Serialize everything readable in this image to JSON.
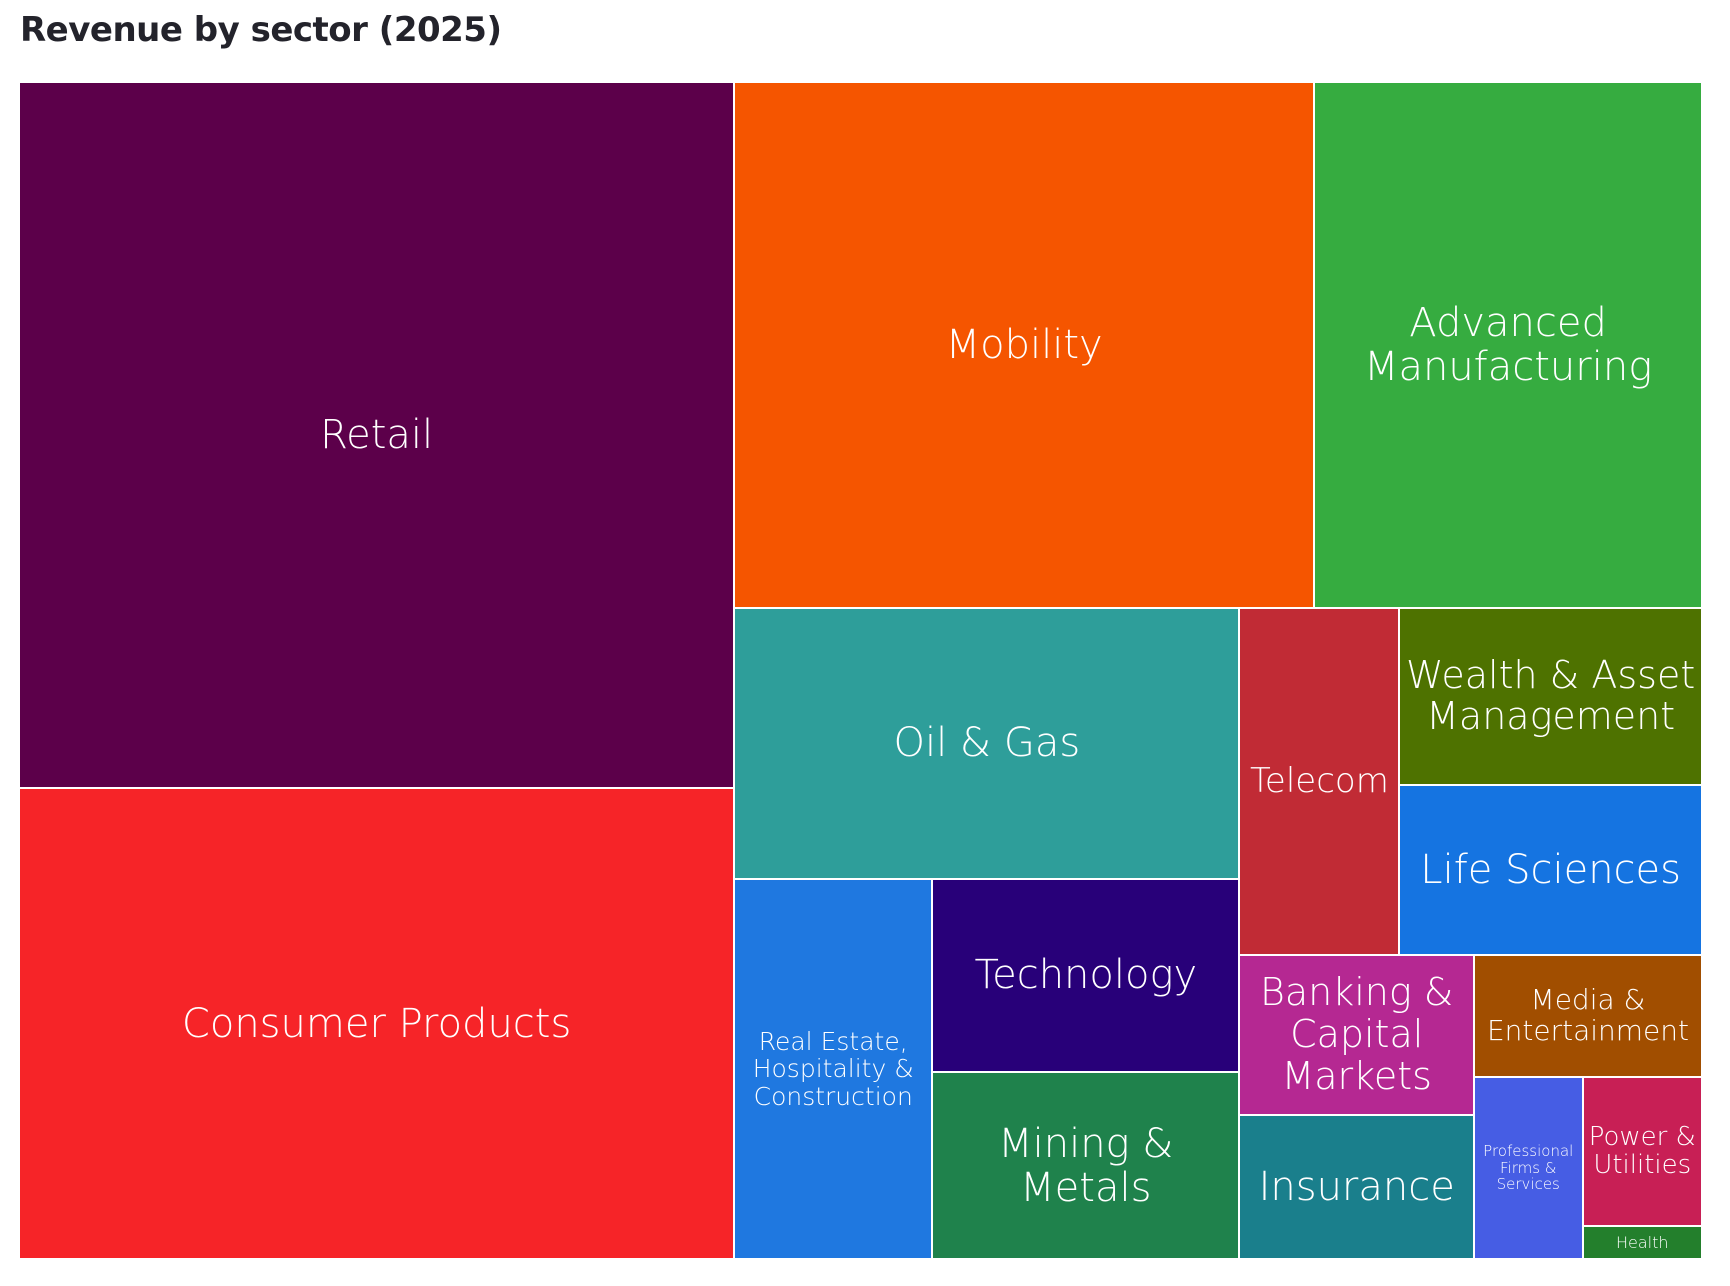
{
  "chart_data": {
    "type": "treemap",
    "title": "Revenue by sector (2025)",
    "value_unit": "estimated share of total area (%)",
    "items": [
      {
        "id": "retail",
        "label": "Retail",
        "value": 25.5,
        "color": "#5c004a"
      },
      {
        "id": "consumer-products",
        "label": "Consumer Products",
        "value": 17.0,
        "color": "#f62428"
      },
      {
        "id": "mobility",
        "label": "Mobility",
        "value": 15.4,
        "color": "#f55500"
      },
      {
        "id": "advanced-manufacturing",
        "label": "Advanced Manufacturing",
        "value": 10.3,
        "color": "#36ac40"
      },
      {
        "id": "oil-gas",
        "label": "Oil & Gas",
        "value": 6.9,
        "color": "#2e9e9a"
      },
      {
        "id": "real-estate",
        "label": "Real Estate, Hospitality & Construction",
        "value": 3.8,
        "color": "#1f78e0"
      },
      {
        "id": "technology",
        "label": "Technology",
        "value": 3.0,
        "color": "#280079"
      },
      {
        "id": "mining-metals",
        "label": "Mining & Metals",
        "value": 2.9,
        "color": "#1f824c"
      },
      {
        "id": "telecom",
        "label": "Telecom",
        "value": 2.8,
        "color": "#c12b35"
      },
      {
        "id": "wealth-asset-management",
        "label": "Wealth & Asset Management",
        "value": 2.7,
        "color": "#4e7200"
      },
      {
        "id": "life-sciences",
        "label": "Life Sciences",
        "value": 2.6,
        "color": "#1574e1"
      },
      {
        "id": "banking-capital-markets",
        "label": "Banking & Capital Markets",
        "value": 1.9,
        "color": "#b52892"
      },
      {
        "id": "insurance",
        "label": "Insurance",
        "value": 1.7,
        "color": "#1a7f8c"
      },
      {
        "id": "media-entertainment",
        "label": "Media & Entertainment",
        "value": 1.4,
        "color": "#a14e00"
      },
      {
        "id": "professional-firms",
        "label": "Professional Firms & Services",
        "value": 1.0,
        "color": "#465de4"
      },
      {
        "id": "power-utilities",
        "label": "Power & Utilities",
        "value": 0.9,
        "color": "#c81f55"
      },
      {
        "id": "health",
        "label": "Health",
        "value": 0.2,
        "color": "#237f2c"
      }
    ]
  }
}
